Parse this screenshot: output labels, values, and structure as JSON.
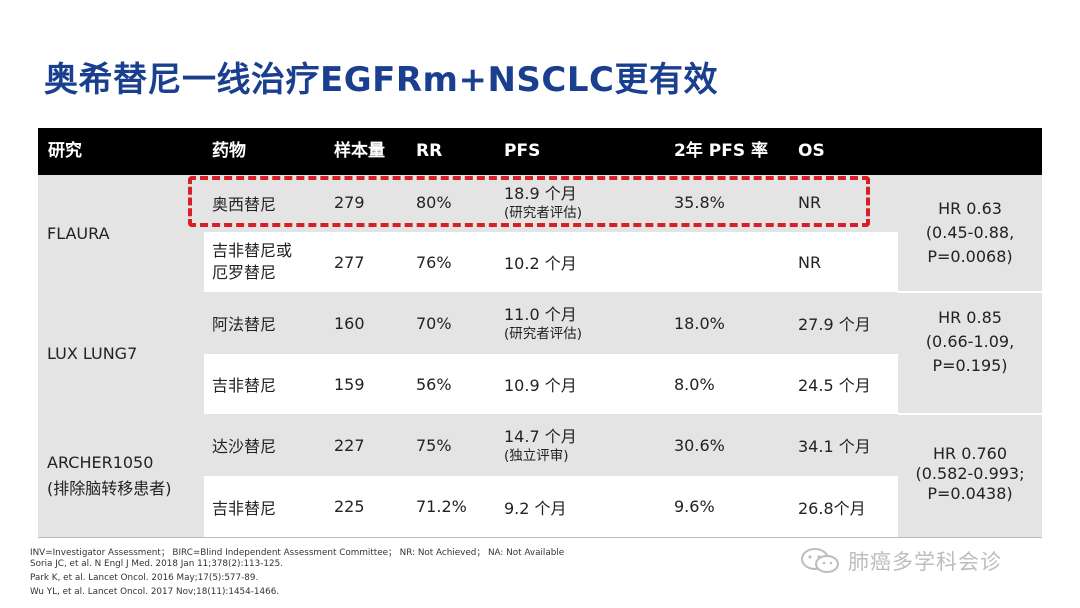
{
  "title": "奥希替尼一线治疗EGFRm+NSCLC更有效",
  "table": {
    "headers": [
      "研究",
      "药物",
      "样本量",
      "RR",
      "PFS",
      "2年 PFS 率",
      "OS"
    ],
    "studies": [
      {
        "name": "FLAURA",
        "name2": "",
        "hr": [
          "HR 0.63",
          "(0.45-0.88,",
          "P=0.0068)"
        ]
      },
      {
        "name": "LUX LUNG7",
        "name2": "",
        "hr": [
          "HR 0.85",
          "(0.66-1.09,",
          "P=0.195)"
        ]
      },
      {
        "name": "ARCHER1050",
        "name2": "(排除脑转移患者)",
        "hr": [
          "HR 0.760",
          "(0.582-0.993;",
          "P=0.0438)"
        ]
      }
    ],
    "rows": [
      {
        "drug": "奥西替尼",
        "drug2": "",
        "n": "279",
        "rr": "80%",
        "pfs": "18.9 个月",
        "pfs_note": "(研究者评估)",
        "pfs2y": "35.8%",
        "os": "NR"
      },
      {
        "drug": "吉非替尼或",
        "drug2": "厄罗替尼",
        "n": "277",
        "rr": "76%",
        "pfs": "10.2 个月",
        "pfs_note": "",
        "pfs2y": "",
        "os": "NR"
      },
      {
        "drug": "阿法替尼",
        "drug2": "",
        "n": "160",
        "rr": "70%",
        "pfs": "11.0 个月",
        "pfs_note": "(研究者评估)",
        "pfs2y": "18.0%",
        "os": "27.9 个月"
      },
      {
        "drug": "吉非替尼",
        "drug2": "",
        "n": "159",
        "rr": "56%",
        "pfs": "10.9 个月",
        "pfs_note": "",
        "pfs2y": "8.0%",
        "os": "24.5 个月"
      },
      {
        "drug": "达沙替尼",
        "drug2": "",
        "n": "227",
        "rr": "75%",
        "pfs": "14.7 个月",
        "pfs_note": "(独立评审)",
        "pfs2y": "30.6%",
        "os": "34.1 个月"
      },
      {
        "drug": "吉非替尼",
        "drug2": "",
        "n": "225",
        "rr": "71.2%",
        "pfs": "9.2 个月",
        "pfs_note": "",
        "pfs2y": "9.6%",
        "os": "26.8个月"
      }
    ]
  },
  "footnotes": [
    "INV=Investigator Assessment；  BIRC=Blind Independent Assessment Committee；  NR:  Not Achieved；  NA:  Not Available",
    "Soria JC, et al. N Engl J Med. 2018 Jan 11;378(2):113-125.",
    "Park K, et al. Lancet Oncol. 2016 May;17(5):577-89.",
    "Wu YL, et al. Lancet Oncol. 2017 Nov;18(11):1454-1466."
  ],
  "watermark": {
    "text": "肺癌多学科会诊",
    "icon": "wechat-icon"
  },
  "colors": {
    "title": "#1b3f8f",
    "header_bg": "#000000",
    "band": "#e4e4e4",
    "highlight": "#d61f26"
  }
}
